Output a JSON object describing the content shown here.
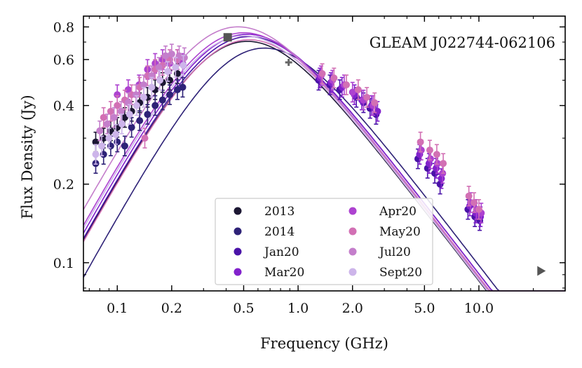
{
  "chart_data": {
    "type": "scatter",
    "title": "GLEAM J022744-062106",
    "xlabel": "Frequency (GHz)",
    "ylabel": "Flux Density (Jy)",
    "xscale": "log",
    "yscale": "log",
    "xlim": [
      0.065,
      30
    ],
    "ylim": [
      0.078,
      0.88
    ],
    "xticks": [
      {
        "v": 0.1,
        "label": "0.1"
      },
      {
        "v": 0.2,
        "label": "0.2"
      },
      {
        "v": 0.5,
        "label": "0.5"
      },
      {
        "v": 1.0,
        "label": "1.0"
      },
      {
        "v": 2.0,
        "label": "2.0"
      },
      {
        "v": 5.0,
        "label": "5.0"
      },
      {
        "v": 10.0,
        "label": "10.0"
      }
    ],
    "yticks": [
      {
        "v": 0.1,
        "label": "0.1"
      },
      {
        "v": 0.2,
        "label": "0.2"
      },
      {
        "v": 0.4,
        "label": "0.4"
      },
      {
        "v": 0.6,
        "label": "0.6"
      },
      {
        "v": 0.8,
        "label": "0.8"
      }
    ],
    "legend_position": "bottom-center",
    "series": [
      {
        "name": "2013",
        "color": "#1c1733",
        "points": [
          [
            0.076,
            0.29
          ],
          [
            0.084,
            0.3
          ],
          [
            0.092,
            0.32
          ],
          [
            0.1,
            0.33
          ],
          [
            0.11,
            0.36
          ],
          [
            0.12,
            0.38
          ],
          [
            0.133,
            0.41
          ],
          [
            0.147,
            0.43
          ],
          [
            0.162,
            0.46
          ],
          [
            0.178,
            0.49
          ],
          [
            0.195,
            0.5
          ],
          [
            0.215,
            0.53
          ]
        ],
        "model": {
          "peak": 0.695,
          "nu_p": 0.45
        }
      },
      {
        "name": "2014",
        "color": "#2e2277",
        "points": [
          [
            0.076,
            0.24
          ],
          [
            0.084,
            0.26
          ],
          [
            0.092,
            0.28
          ],
          [
            0.1,
            0.29
          ],
          [
            0.11,
            0.28
          ],
          [
            0.12,
            0.33
          ],
          [
            0.133,
            0.35
          ],
          [
            0.147,
            0.37
          ],
          [
            0.162,
            0.4
          ],
          [
            0.178,
            0.42
          ],
          [
            0.195,
            0.44
          ],
          [
            0.215,
            0.46
          ],
          [
            0.23,
            0.47
          ]
        ],
        "model": {
          "peak": 0.655,
          "nu_p": 0.56
        }
      },
      {
        "name": "Jan20",
        "color": "#4a13a8",
        "points": [
          [
            1.3,
            0.5
          ],
          [
            1.5,
            0.48
          ],
          [
            1.7,
            0.46
          ],
          [
            2.1,
            0.43
          ],
          [
            2.3,
            0.41
          ],
          [
            2.5,
            0.39
          ],
          [
            2.7,
            0.37
          ],
          [
            4.6,
            0.25
          ],
          [
            5.2,
            0.23
          ],
          [
            5.7,
            0.22
          ],
          [
            6.1,
            0.2
          ],
          [
            8.7,
            0.16
          ],
          [
            9.5,
            0.15
          ],
          [
            10.1,
            0.145
          ]
        ],
        "model": {
          "peak": 0.725,
          "nu_p": 0.46
        }
      },
      {
        "name": "Mar20",
        "color": "#8222cc",
        "points": [
          [
            1.32,
            0.51
          ],
          [
            1.52,
            0.49
          ],
          [
            1.75,
            0.47
          ],
          [
            2.05,
            0.44
          ],
          [
            2.25,
            0.42
          ],
          [
            2.55,
            0.4
          ],
          [
            2.75,
            0.38
          ],
          [
            4.7,
            0.26
          ],
          [
            5.3,
            0.24
          ],
          [
            5.8,
            0.23
          ],
          [
            6.2,
            0.21
          ],
          [
            8.9,
            0.165
          ],
          [
            9.6,
            0.155
          ],
          [
            10.2,
            0.15
          ]
        ],
        "model": {
          "peak": 0.74,
          "nu_p": 0.45
        }
      },
      {
        "name": "Apr20",
        "color": "#ad42d0",
        "points": [
          [
            0.1,
            0.44
          ],
          [
            0.115,
            0.46
          ],
          [
            0.132,
            0.48
          ],
          [
            0.147,
            0.55
          ],
          [
            0.162,
            0.58
          ],
          [
            0.178,
            0.6
          ],
          [
            0.195,
            0.58
          ],
          [
            0.215,
            0.6
          ],
          [
            0.23,
            0.58
          ],
          [
            1.34,
            0.52
          ],
          [
            1.55,
            0.5
          ],
          [
            1.8,
            0.48
          ],
          [
            2.0,
            0.45
          ],
          [
            2.3,
            0.42
          ],
          [
            2.6,
            0.4
          ],
          [
            4.8,
            0.27
          ],
          [
            5.4,
            0.25
          ],
          [
            5.9,
            0.24
          ],
          [
            6.3,
            0.22
          ],
          [
            9.0,
            0.17
          ],
          [
            9.7,
            0.16
          ],
          [
            10.3,
            0.155
          ]
        ],
        "model": {
          "peak": 0.75,
          "nu_p": 0.43
        }
      },
      {
        "name": "May20",
        "color": "#d270b4",
        "points": [
          [
            0.084,
            0.36
          ],
          [
            0.092,
            0.38
          ],
          [
            0.1,
            0.4
          ],
          [
            0.11,
            0.42
          ],
          [
            0.12,
            0.44
          ],
          [
            0.133,
            0.47
          ],
          [
            0.142,
            0.3
          ],
          [
            0.147,
            0.52
          ],
          [
            0.162,
            0.55
          ],
          [
            0.178,
            0.57
          ],
          [
            0.195,
            0.6
          ],
          [
            0.215,
            0.6
          ],
          [
            1.36,
            0.53
          ],
          [
            1.58,
            0.51
          ],
          [
            1.85,
            0.48
          ],
          [
            2.15,
            0.46
          ],
          [
            2.4,
            0.43
          ],
          [
            2.65,
            0.41
          ],
          [
            4.75,
            0.29
          ],
          [
            5.35,
            0.27
          ],
          [
            5.85,
            0.26
          ],
          [
            6.35,
            0.24
          ],
          [
            8.8,
            0.18
          ],
          [
            9.4,
            0.17
          ],
          [
            10.0,
            0.16
          ]
        ],
        "model": {
          "peak": 0.705,
          "nu_p": 0.46
        }
      },
      {
        "name": "Jul20",
        "color": "#c47ecb",
        "points": [
          [
            0.08,
            0.32
          ],
          [
            0.088,
            0.34
          ],
          [
            0.096,
            0.36
          ],
          [
            0.105,
            0.38
          ],
          [
            0.115,
            0.41
          ],
          [
            0.127,
            0.44
          ],
          [
            0.14,
            0.48
          ],
          [
            0.155,
            0.52
          ],
          [
            0.17,
            0.56
          ],
          [
            0.185,
            0.62
          ],
          [
            0.2,
            0.63
          ],
          [
            0.22,
            0.62
          ],
          [
            0.235,
            0.61
          ]
        ],
        "model": {
          "peak": 0.79,
          "nu_p": 0.4
        }
      },
      {
        "name": "Sept20",
        "color": "#cdb5ea",
        "points": [
          [
            0.076,
            0.26
          ],
          [
            0.082,
            0.28
          ],
          [
            0.09,
            0.3
          ],
          [
            0.098,
            0.31
          ],
          [
            0.106,
            0.34
          ],
          [
            0.117,
            0.37
          ],
          [
            0.128,
            0.4
          ],
          [
            0.14,
            0.43
          ],
          [
            0.155,
            0.47
          ],
          [
            0.172,
            0.5
          ],
          [
            0.19,
            0.54
          ],
          [
            0.21,
            0.56
          ],
          [
            0.232,
            0.57
          ]
        ],
        "model": {
          "peak": 0.73,
          "nu_p": 0.43
        }
      }
    ],
    "extra_points": [
      {
        "name": "archival-square",
        "marker": "square",
        "x": 0.408,
        "y": 0.73,
        "color": "#555555"
      },
      {
        "name": "archival-plus",
        "marker": "plus",
        "x": 0.887,
        "y": 0.585,
        "color": "#666666"
      },
      {
        "name": "archival-triangle",
        "marker": "triangle-right",
        "x": 22.0,
        "y": 0.093,
        "color": "#555555"
      }
    ]
  }
}
